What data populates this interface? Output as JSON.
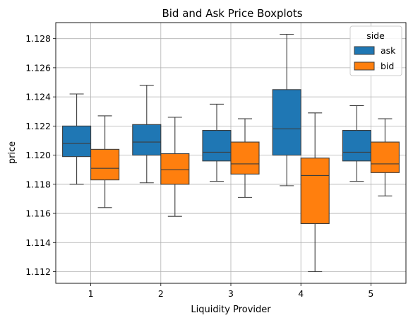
{
  "chart_data": {
    "type": "boxplot",
    "title": "Bid and Ask Price Boxplots",
    "xlabel": "Liquidity Provider",
    "ylabel": "price",
    "categories": [
      "1",
      "2",
      "3",
      "4",
      "5"
    ],
    "ylim": [
      1.1112,
      1.1291
    ],
    "yticks": [
      "1.112",
      "1.114",
      "1.116",
      "1.118",
      "1.120",
      "1.122",
      "1.124",
      "1.126",
      "1.128"
    ],
    "grid": true,
    "legend": {
      "title": "side",
      "position": "top-right"
    },
    "series": [
      {
        "name": "ask",
        "color": "#1f77b4",
        "boxes": [
          {
            "whisker_low": 1.118,
            "q1": 1.1199,
            "median": 1.1208,
            "q3": 1.122,
            "whisker_high": 1.1242
          },
          {
            "whisker_low": 1.1181,
            "q1": 1.12,
            "median": 1.1209,
            "q3": 1.1221,
            "whisker_high": 1.1248
          },
          {
            "whisker_low": 1.1182,
            "q1": 1.1196,
            "median": 1.1202,
            "q3": 1.1217,
            "whisker_high": 1.1235
          },
          {
            "whisker_low": 1.1179,
            "q1": 1.12,
            "median": 1.1218,
            "q3": 1.1245,
            "whisker_high": 1.1283
          },
          {
            "whisker_low": 1.1182,
            "q1": 1.1196,
            "median": 1.1202,
            "q3": 1.1217,
            "whisker_high": 1.1234
          }
        ]
      },
      {
        "name": "bid",
        "color": "#ff7f0e",
        "boxes": [
          {
            "whisker_low": 1.1164,
            "q1": 1.1183,
            "median": 1.1191,
            "q3": 1.1204,
            "whisker_high": 1.1227
          },
          {
            "whisker_low": 1.1158,
            "q1": 1.118,
            "median": 1.119,
            "q3": 1.1201,
            "whisker_high": 1.1226
          },
          {
            "whisker_low": 1.1171,
            "q1": 1.1187,
            "median": 1.1194,
            "q3": 1.1209,
            "whisker_high": 1.1225
          },
          {
            "whisker_low": 1.112,
            "q1": 1.1153,
            "median": 1.1186,
            "q3": 1.1198,
            "whisker_high": 1.1229
          },
          {
            "whisker_low": 1.1172,
            "q1": 1.1188,
            "median": 1.1194,
            "q3": 1.1209,
            "whisker_high": 1.1225
          }
        ]
      }
    ]
  }
}
